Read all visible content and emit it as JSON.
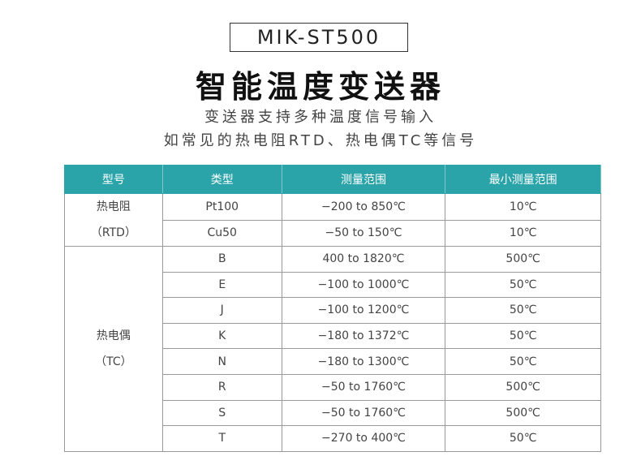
{
  "header": {
    "model": "MIK-ST500",
    "title": "智能温度变送器",
    "subtitle_lines": [
      "变送器支持多种温度信号输入",
      "如常见的热电阻RTD、热电偶TC等信号"
    ]
  },
  "table": {
    "columns": [
      "型号",
      "类型",
      "测量范围",
      "最小测量范围"
    ],
    "groups": [
      {
        "label_lines": [
          "热电阻",
          "（RTD）"
        ],
        "rows": [
          [
            "Pt100",
            "−200 to 850℃",
            "10℃"
          ],
          [
            "Cu50",
            "−50 to 150℃",
            "10℃"
          ]
        ]
      },
      {
        "label_lines": [
          "热电偶",
          "（TC）"
        ],
        "rows": [
          [
            "B",
            "400 to 1820℃",
            "500℃"
          ],
          [
            "E",
            "−100 to 1000℃",
            "50℃"
          ],
          [
            "J",
            "−100 to 1200℃",
            "50℃"
          ],
          [
            "K",
            "−180 to 1372℃",
            "50℃"
          ],
          [
            "N",
            "−180 to 1300℃",
            "50℃"
          ],
          [
            "R",
            "−50 to 1760℃",
            "500℃"
          ],
          [
            "S",
            "−50 to 1760℃",
            "500℃"
          ],
          [
            "T",
            "−270 to 400℃",
            "50℃"
          ]
        ]
      }
    ]
  }
}
